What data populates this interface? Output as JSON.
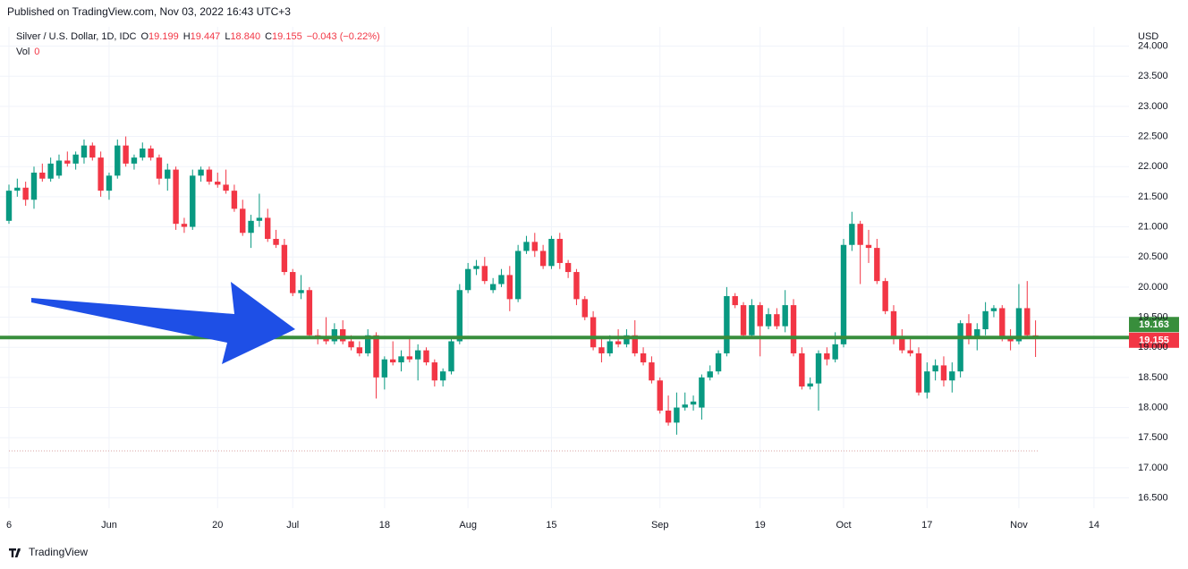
{
  "header": {
    "published": "Published on TradingView.com, Nov 03, 2022 16:43 UTC+3"
  },
  "footer": {
    "brand": "TradingView"
  },
  "chart_data": {
    "type": "candlestick",
    "legend": {
      "symbol": "Silver / U.S. Dollar, 1D, IDC",
      "o_label": "O",
      "o": "19.199",
      "h_label": "H",
      "h": "19.447",
      "l_label": "L",
      "l": "18.840",
      "c_label": "C",
      "c": "19.155",
      "change": "−0.043 (−0.22%)",
      "vol_label": "Vol",
      "vol": "0"
    },
    "currency": "USD",
    "up_color": "#089981",
    "down_color": "#f23645",
    "grid": true,
    "ylim": [
      16.33,
      24.32
    ],
    "yticks": [
      {
        "value": 16.5,
        "label": "16.500"
      },
      {
        "value": 17,
        "label": "17.000"
      },
      {
        "value": 17.5,
        "label": "17.500"
      },
      {
        "value": 18,
        "label": "18.000"
      },
      {
        "value": 18.5,
        "label": "18.500"
      },
      {
        "value": 19,
        "label": "19.000"
      },
      {
        "value": 19.5,
        "label": "19.500"
      },
      {
        "value": 20,
        "label": "20.000"
      },
      {
        "value": 20.5,
        "label": "20.500"
      },
      {
        "value": 21,
        "label": "21.000"
      },
      {
        "value": 21.5,
        "label": "21.500"
      },
      {
        "value": 22,
        "label": "22.000"
      },
      {
        "value": 22.5,
        "label": "22.500"
      },
      {
        "value": 23,
        "label": "23.000"
      },
      {
        "value": 23.5,
        "label": "23.500"
      },
      {
        "value": 24,
        "label": "24.000"
      }
    ],
    "hline": {
      "value": 19.163,
      "label": "19.163",
      "color": "#388e3c"
    },
    "last_price": {
      "value": 19.155,
      "label": "19.155"
    },
    "categories": [
      "6",
      null,
      null,
      null,
      null,
      null,
      null,
      null,
      null,
      null,
      null,
      null,
      "Jun",
      null,
      null,
      null,
      null,
      null,
      null,
      null,
      null,
      null,
      null,
      null,
      null,
      "20",
      null,
      null,
      null,
      null,
      null,
      null,
      null,
      null,
      "Jul",
      null,
      null,
      null,
      null,
      null,
      null,
      null,
      null,
      null,
      null,
      "18",
      null,
      null,
      null,
      null,
      null,
      null,
      null,
      null,
      null,
      "Aug",
      null,
      null,
      null,
      null,
      null,
      null,
      null,
      null,
      null,
      "15",
      null,
      null,
      null,
      null,
      null,
      null,
      null,
      null,
      null,
      null,
      null,
      null,
      "Sep",
      null,
      null,
      null,
      null,
      null,
      null,
      null,
      null,
      null,
      null,
      null,
      "19",
      null,
      null,
      null,
      null,
      null,
      null,
      null,
      null,
      null,
      "Oct",
      null,
      null,
      null,
      null,
      null,
      null,
      null,
      null,
      null,
      "17",
      null,
      null,
      null,
      null,
      null,
      null,
      null,
      null,
      null,
      null,
      "Nov",
      null,
      null,
      null,
      null,
      null,
      null,
      null,
      null,
      "14",
      null,
      null,
      null
    ],
    "open": [
      21.1,
      21.6,
      21.65,
      21.45,
      21.9,
      21.8,
      21.85,
      22.1,
      22.05,
      22.15,
      22.35,
      22.15,
      21.6,
      21.85,
      22.35,
      22.05,
      22.15,
      22.3,
      22.15,
      21.8,
      21.95,
      21.05,
      21.0,
      21.85,
      21.95,
      21.75,
      21.7,
      21.6,
      21.3,
      20.9,
      21.1,
      21.15,
      20.8,
      20.7,
      20.25,
      19.9,
      19.95,
      19.2,
      19.15,
      19.1,
      19.3,
      19.1,
      19.0,
      18.9,
      19.2,
      18.5,
      18.8,
      18.75,
      18.85,
      18.8,
      18.95,
      18.75,
      18.45,
      18.6,
      19.1,
      19.95,
      20.3,
      20.35,
      19.95,
      20.05,
      20.2,
      19.8,
      20.6,
      20.75,
      20.6,
      20.35,
      20.8,
      20.4,
      20.25,
      19.8,
      19.5,
      19.0,
      18.9,
      19.1,
      19.05,
      19.2,
      18.9,
      18.75,
      18.45,
      17.95,
      17.75,
      18.0,
      18.05,
      18.0,
      18.5,
      18.6,
      18.9,
      19.85,
      19.7,
      19.2,
      19.7,
      19.35,
      19.55,
      19.35,
      19.7,
      18.9,
      18.35,
      18.4,
      18.9,
      18.8,
      19.05,
      20.7,
      21.05,
      20.7,
      20.65,
      20.1,
      19.6,
      19.15,
      18.95,
      18.9,
      18.25,
      18.6,
      18.7,
      18.45,
      18.6,
      19.4,
      19.15,
      19.3,
      19.6,
      19.65,
      19.15,
      19.1,
      19.65,
      19.199,
      null,
      null,
      null,
      null,
      null,
      null,
      null,
      null,
      null,
      null
    ],
    "high": [
      21.7,
      21.8,
      21.75,
      22.0,
      22.05,
      22.15,
      22.2,
      22.25,
      22.25,
      22.45,
      22.4,
      22.25,
      21.9,
      22.45,
      22.5,
      22.2,
      22.4,
      22.35,
      22.2,
      22.05,
      22.0,
      21.15,
      21.95,
      22.0,
      22.0,
      21.9,
      21.95,
      21.7,
      21.45,
      21.2,
      21.55,
      21.3,
      20.95,
      20.8,
      20.3,
      20.2,
      20.0,
      19.3,
      19.5,
      19.4,
      19.45,
      19.2,
      19.1,
      19.3,
      19.25,
      18.85,
      19.1,
      18.95,
      19.15,
      19.05,
      19.0,
      18.8,
      18.65,
      19.15,
      20.05,
      20.4,
      20.45,
      20.5,
      20.15,
      20.3,
      20.35,
      20.7,
      20.85,
      20.9,
      20.7,
      20.85,
      20.9,
      20.45,
      20.3,
      19.85,
      19.6,
      19.15,
      19.2,
      19.3,
      19.3,
      19.45,
      19.0,
      18.85,
      18.5,
      18.2,
      18.25,
      18.25,
      18.2,
      18.55,
      18.7,
      18.95,
      20.0,
      19.9,
      19.75,
      19.8,
      19.75,
      19.65,
      19.65,
      19.95,
      19.8,
      19.0,
      18.5,
      18.95,
      19.0,
      19.25,
      20.8,
      21.25,
      21.1,
      20.95,
      20.8,
      20.15,
      19.7,
      19.3,
      19.15,
      19.0,
      18.75,
      18.8,
      18.85,
      18.75,
      19.45,
      19.55,
      19.4,
      19.75,
      19.7,
      19.7,
      19.3,
      20.05,
      20.1,
      19.447,
      null,
      null,
      null,
      null,
      null,
      null,
      null,
      null,
      null,
      null
    ],
    "low": [
      21.05,
      21.5,
      21.35,
      21.3,
      21.75,
      21.75,
      21.8,
      22.0,
      21.95,
      22.05,
      22.1,
      21.5,
      21.45,
      21.8,
      22.0,
      21.95,
      22.1,
      22.1,
      21.7,
      21.6,
      20.95,
      20.9,
      20.95,
      21.75,
      21.7,
      21.65,
      21.55,
      21.25,
      20.85,
      20.65,
      21.0,
      20.75,
      20.65,
      20.2,
      19.85,
      19.8,
      19.15,
      19.05,
      19.05,
      19.05,
      19.05,
      18.95,
      18.85,
      18.85,
      18.15,
      18.3,
      18.7,
      18.6,
      18.75,
      18.45,
      18.7,
      18.35,
      18.35,
      18.55,
      19.05,
      19.9,
      20.2,
      20.05,
      19.9,
      20.0,
      19.6,
      19.75,
      20.55,
      20.5,
      20.3,
      20.3,
      20.3,
      20.15,
      19.7,
      19.45,
      18.95,
      18.75,
      18.85,
      19.0,
      19.0,
      18.85,
      18.7,
      18.4,
      17.9,
      17.7,
      17.55,
      17.95,
      17.95,
      17.8,
      18.45,
      18.55,
      18.85,
      19.65,
      19.15,
      19.15,
      18.85,
      19.3,
      19.3,
      19.25,
      18.85,
      18.3,
      18.3,
      17.95,
      18.7,
      18.75,
      19.0,
      20.6,
      20.05,
      20.4,
      20.05,
      19.55,
      19.05,
      18.9,
      18.85,
      18.2,
      18.15,
      18.45,
      18.35,
      18.25,
      18.5,
      19.05,
      18.95,
      19.2,
      19.5,
      19.1,
      18.95,
      19.05,
      19.15,
      18.84,
      null,
      null,
      null,
      null,
      null,
      null,
      null,
      null,
      null,
      null
    ],
    "close": [
      21.6,
      21.65,
      21.45,
      21.9,
      21.8,
      22.05,
      22.1,
      22.05,
      22.2,
      22.35,
      22.15,
      21.6,
      21.85,
      22.35,
      22.05,
      22.15,
      22.3,
      22.15,
      21.8,
      21.95,
      21.05,
      21.0,
      21.85,
      21.95,
      21.75,
      21.7,
      21.6,
      21.3,
      20.9,
      21.1,
      21.15,
      20.8,
      20.7,
      20.25,
      19.9,
      19.95,
      19.2,
      19.15,
      19.1,
      19.3,
      19.1,
      19.0,
      18.9,
      19.2,
      18.5,
      18.8,
      18.75,
      18.85,
      18.8,
      18.95,
      18.75,
      18.45,
      18.6,
      19.1,
      19.95,
      20.3,
      20.35,
      20.1,
      20.05,
      20.2,
      19.8,
      20.6,
      20.75,
      20.6,
      20.35,
      20.8,
      20.4,
      20.25,
      19.8,
      19.5,
      19.0,
      18.9,
      19.1,
      19.05,
      19.2,
      18.9,
      18.75,
      18.45,
      17.95,
      17.75,
      18.0,
      18.05,
      18.1,
      18.5,
      18.6,
      18.9,
      19.85,
      19.7,
      19.2,
      19.7,
      19.35,
      19.55,
      19.35,
      19.7,
      18.9,
      18.35,
      18.4,
      18.9,
      18.8,
      19.05,
      20.7,
      21.05,
      20.7,
      20.65,
      20.1,
      19.6,
      19.15,
      18.95,
      18.9,
      18.25,
      18.6,
      18.7,
      18.45,
      18.6,
      19.4,
      19.15,
      19.3,
      19.6,
      19.65,
      19.15,
      19.1,
      19.65,
      19.2,
      19.155,
      null,
      null,
      null,
      null,
      null,
      null,
      null,
      null,
      null,
      null
    ]
  }
}
